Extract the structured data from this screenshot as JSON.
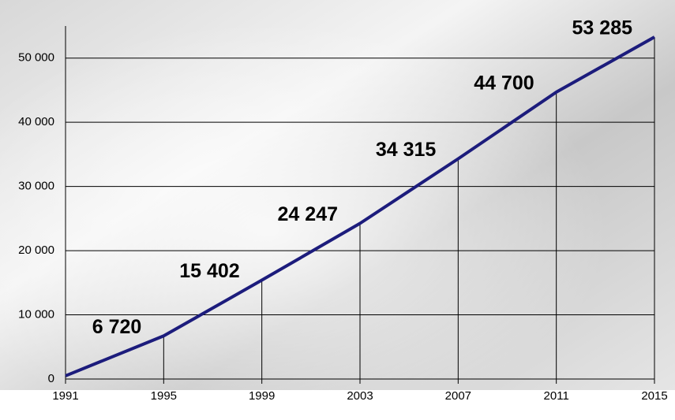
{
  "chart_data": {
    "type": "line",
    "x": [
      1991,
      1995,
      1999,
      2003,
      2007,
      2011,
      2015
    ],
    "values": [
      500,
      6720,
      15402,
      24247,
      34315,
      44700,
      53285
    ],
    "value_labels": [
      null,
      "6 720",
      "15 402",
      "24 247",
      "34 315",
      "44 700",
      "53 285"
    ],
    "color": "#1c1c7c",
    "xlim": [
      1991,
      2015
    ],
    "xticks": [
      1991,
      1995,
      1999,
      2003,
      2007,
      2011,
      2015
    ],
    "ylim": [
      0,
      55000
    ],
    "yticks": [
      0,
      {
        "value": 10000,
        "label": "10 000"
      },
      {
        "value": 20000,
        "label": "20 000"
      },
      {
        "value": 30000,
        "label": "30 000"
      },
      {
        "value": 40000,
        "label": "40 000"
      },
      {
        "value": 50000,
        "label": "50 000"
      }
    ],
    "grid": true,
    "drop_lines": true
  }
}
